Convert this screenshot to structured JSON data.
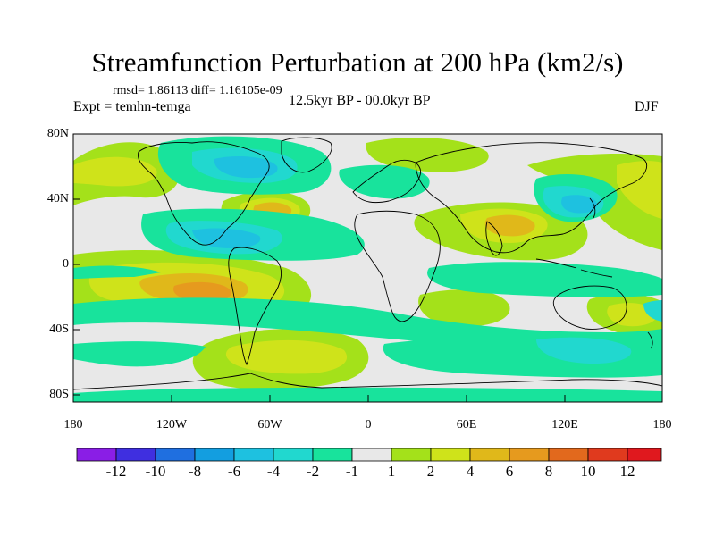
{
  "figure": {
    "title": "Streamfunction Perturbation at 200 hPa (km2/s)",
    "stats": "rmsd= 1.86113  diff= 1.16105e-09",
    "experiment": "Expt = temhn-temga",
    "period": "12.5kyr BP - 00.0kyr BP",
    "season": "DJF"
  },
  "axes": {
    "lat_labels": [
      "80N",
      "40N",
      "0",
      "40S",
      "80S"
    ],
    "lon_labels": [
      "180",
      "120W",
      "60W",
      "0",
      "60E",
      "120E",
      "180"
    ]
  },
  "colorbar": {
    "labels": [
      "-12",
      "-10",
      "-8",
      "-6",
      "-4",
      "-2",
      "-1",
      "1",
      "2",
      "4",
      "6",
      "8",
      "10",
      "12"
    ],
    "colors": [
      "#8a1ee6",
      "#3f2fe0",
      "#1f6fe0",
      "#139ee0",
      "#1ec1e0",
      "#21d8cf",
      "#18e39c",
      "#e8e8e8",
      "#a4e11a",
      "#cfe31a",
      "#e0b81a",
      "#e69a1e",
      "#e2691d",
      "#e03a1e",
      "#e0181e"
    ]
  },
  "colors": {
    "background": "#e8e8e8",
    "coast": "#000000"
  }
}
